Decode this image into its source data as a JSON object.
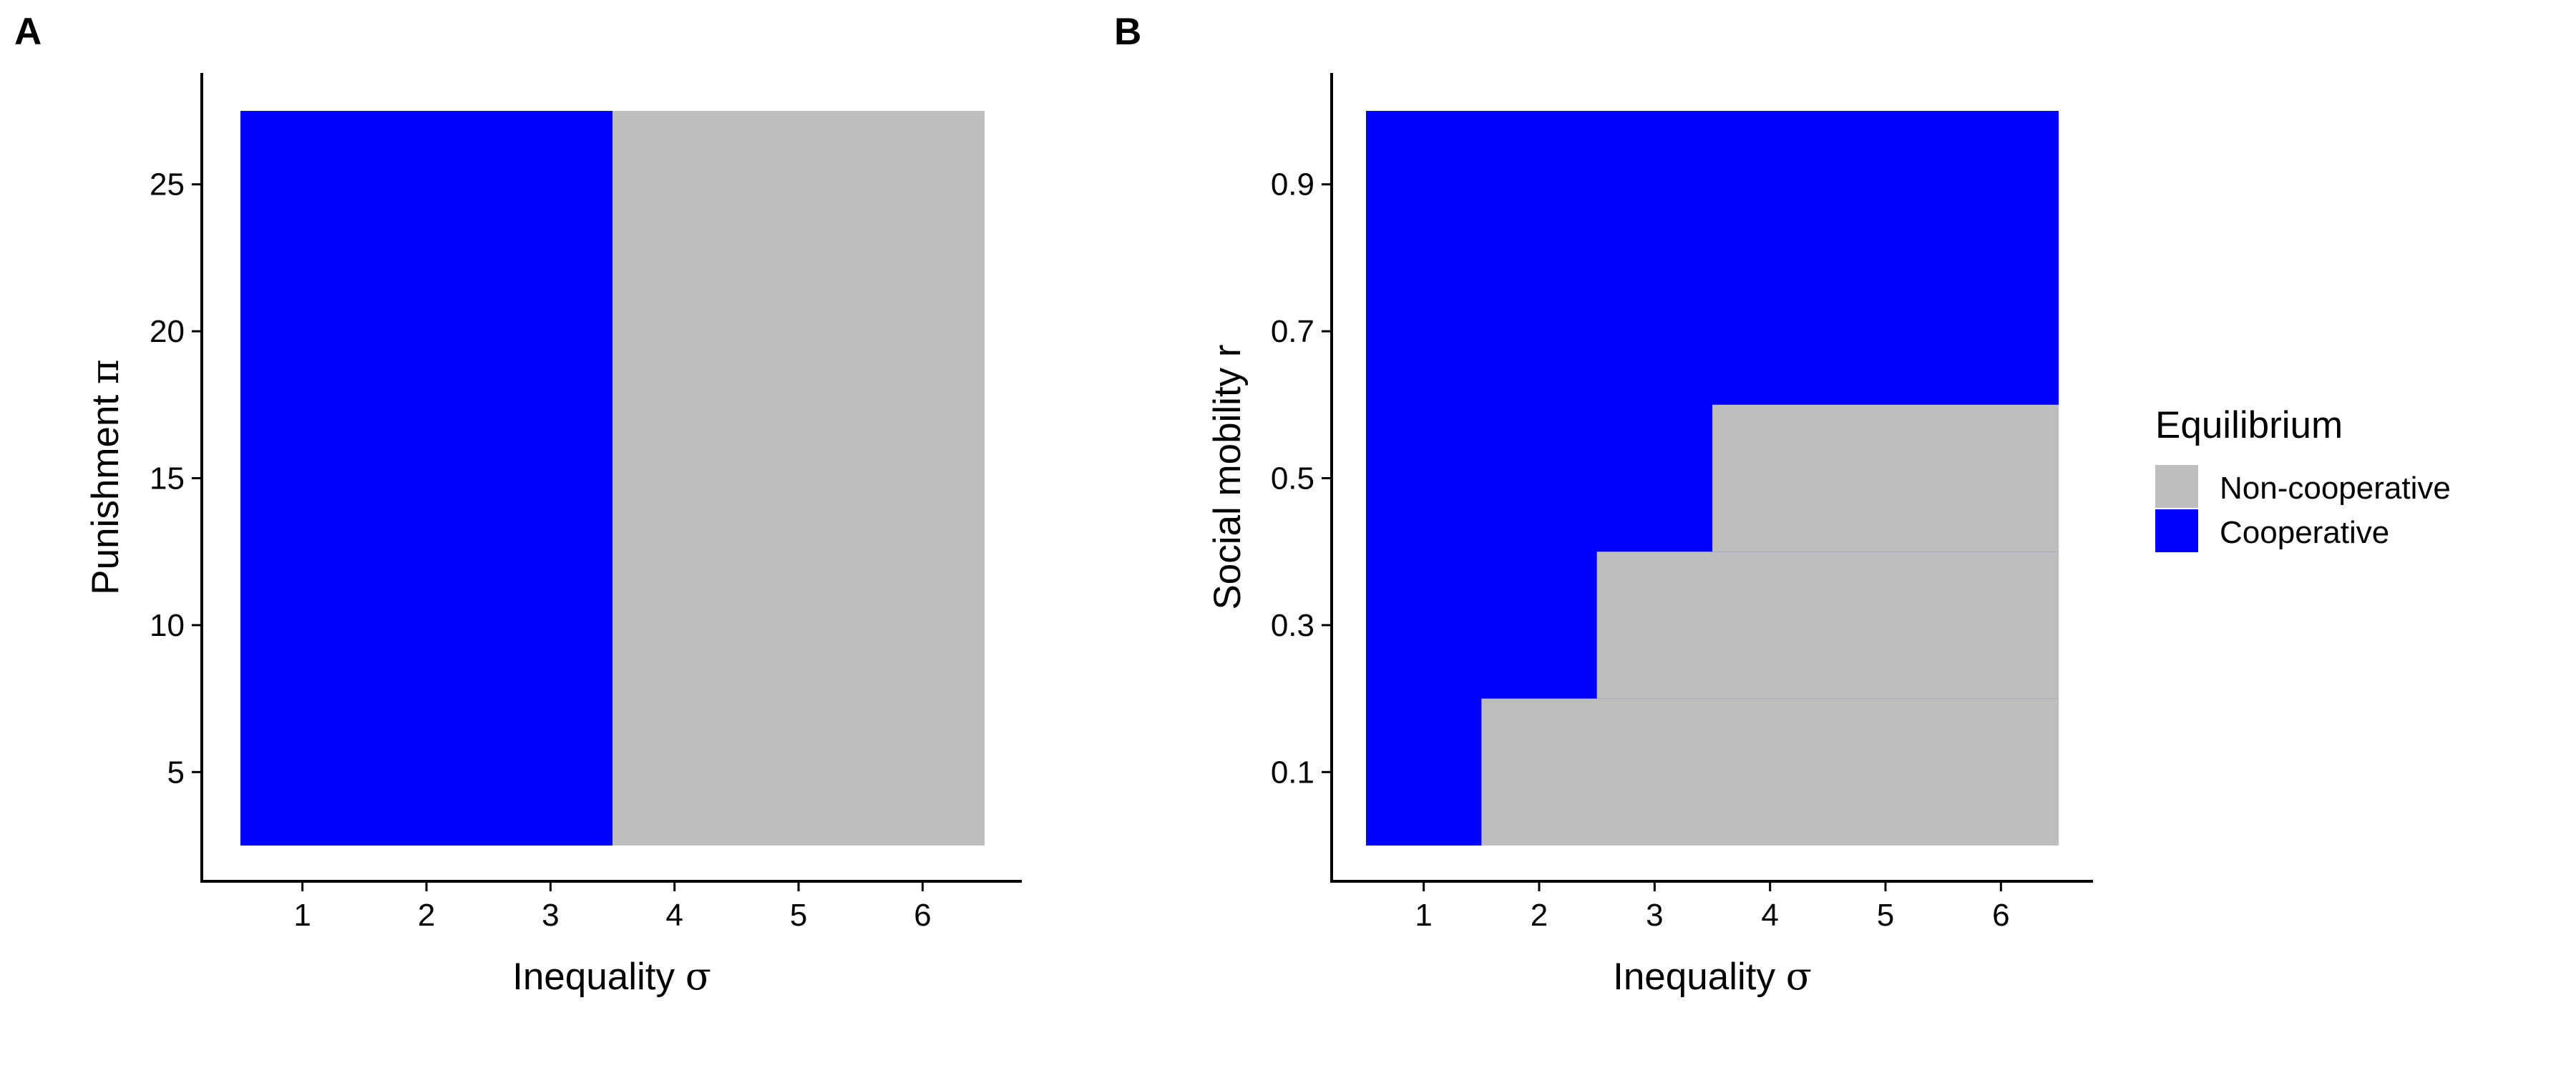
{
  "chart_data": [
    {
      "type": "heatmap",
      "panel_label": "A",
      "xlabel": "Inequality",
      "xlabel_symbol": "σ",
      "ylabel": "Punishment",
      "ylabel_symbol": "π",
      "x_ticks": [
        "1",
        "2",
        "3",
        "4",
        "5",
        "6"
      ],
      "y_ticks": [
        "5",
        "10",
        "15",
        "20",
        "25"
      ],
      "xlim": [
        0.5,
        6.5
      ],
      "ylim": [
        2.5,
        27.5
      ],
      "cells": [
        {
          "x0": 0.5,
          "x1": 3.5,
          "y0": 2.5,
          "y1": 27.5,
          "category": "Cooperative"
        },
        {
          "x0": 3.5,
          "x1": 6.5,
          "y0": 2.5,
          "y1": 27.5,
          "category": "Non-cooperative"
        }
      ]
    },
    {
      "type": "heatmap",
      "panel_label": "B",
      "xlabel": "Inequality",
      "xlabel_symbol": "σ",
      "ylabel": "Social mobility r",
      "ylabel_symbol": "",
      "x_ticks": [
        "1",
        "2",
        "3",
        "4",
        "5",
        "6"
      ],
      "y_ticks": [
        "0.1",
        "0.3",
        "0.5",
        "0.7",
        "0.9"
      ],
      "xlim": [
        0.5,
        6.5
      ],
      "ylim": [
        0.0,
        1.0
      ],
      "cells": [
        {
          "x0": 0.5,
          "x1": 6.5,
          "y0": 0.0,
          "y1": 1.0,
          "category": "Cooperative"
        },
        {
          "x0": 1.5,
          "x1": 6.5,
          "y0": 0.0,
          "y1": 0.2,
          "category": "Non-cooperative"
        },
        {
          "x0": 2.5,
          "x1": 6.5,
          "y0": 0.2,
          "y1": 0.4,
          "category": "Non-cooperative"
        },
        {
          "x0": 3.5,
          "x1": 6.5,
          "y0": 0.4,
          "y1": 0.6,
          "category": "Non-cooperative"
        }
      ]
    }
  ],
  "legend": {
    "title": "Equilibrium",
    "placement": "right",
    "items": [
      {
        "label": "Non-cooperative",
        "color": "#bebebe"
      },
      {
        "label": "Cooperative",
        "color": "#0000ff"
      }
    ]
  },
  "colors": {
    "Cooperative": "#0000ff",
    "Non-cooperative": "#bebebe",
    "axis": "#000000"
  }
}
